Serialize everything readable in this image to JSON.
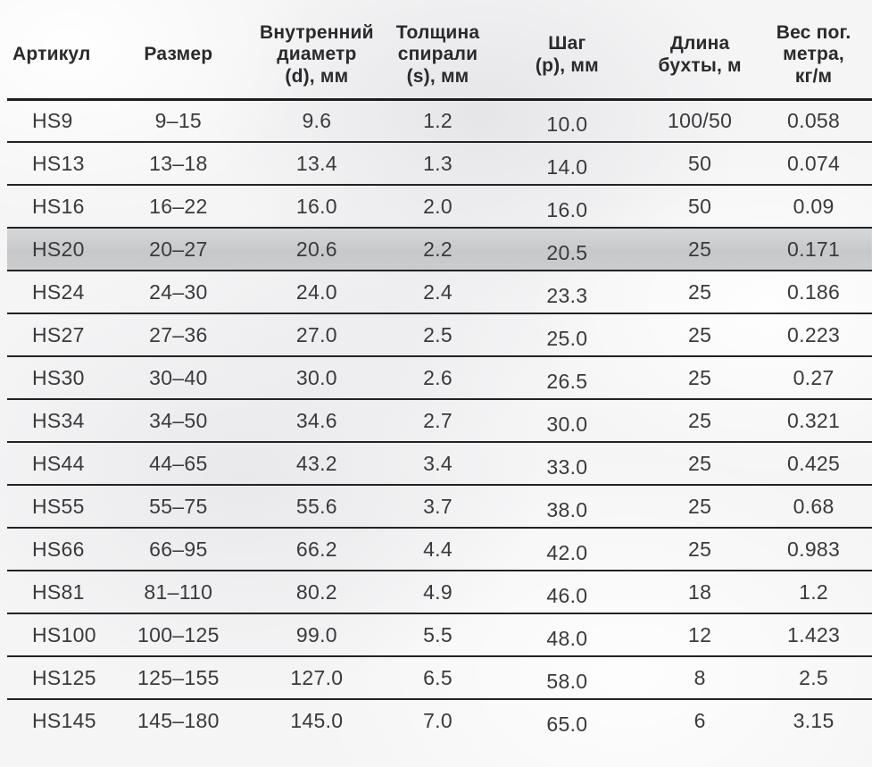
{
  "chart_data": {
    "type": "table",
    "title": "",
    "columns": [
      "Артикул",
      "Размер",
      "Внутренний диаметр (d), мм",
      "Толщина спирали (s), мм",
      "Шаг (p), мм",
      "Длина бухты, м",
      "Вес пог. метра, кг/м"
    ],
    "column_keys": [
      "article",
      "size",
      "inner-diameter",
      "spiral-thickness",
      "pitch",
      "coil-length",
      "weight-per-meter"
    ],
    "rows": [
      [
        "HS9",
        "9–15",
        "9.6",
        "1.2",
        "10.0",
        "100/50",
        "0.058"
      ],
      [
        "HS13",
        "13–18",
        "13.4",
        "1.3",
        "14.0",
        "50",
        "0.074"
      ],
      [
        "HS16",
        "16–22",
        "16.0",
        "2.0",
        "16.0",
        "50",
        "0.09"
      ],
      [
        "HS20",
        "20–27",
        "20.6",
        "2.2",
        "20.5",
        "25",
        "0.171"
      ],
      [
        "HS24",
        "24–30",
        "24.0",
        "2.4",
        "23.3",
        "25",
        "0.186"
      ],
      [
        "HS27",
        "27–36",
        "27.0",
        "2.5",
        "25.0",
        "25",
        "0.223"
      ],
      [
        "HS30",
        "30–40",
        "30.0",
        "2.6",
        "26.5",
        "25",
        "0.27"
      ],
      [
        "HS34",
        "34–50",
        "34.6",
        "2.7",
        "30.0",
        "25",
        "0.321"
      ],
      [
        "HS44",
        "44–65",
        "43.2",
        "3.4",
        "33.0",
        "25",
        "0.425"
      ],
      [
        "HS55",
        "55–75",
        "55.6",
        "3.7",
        "38.0",
        "25",
        "0.68"
      ],
      [
        "HS66",
        "66–95",
        "66.2",
        "4.4",
        "42.0",
        "25",
        "0.983"
      ],
      [
        "HS81",
        "81–110",
        "80.2",
        "4.9",
        "46.0",
        "18",
        "1.2"
      ],
      [
        "HS100",
        "100–125",
        "99.0",
        "5.5",
        "48.0",
        "12",
        "1.423"
      ],
      [
        "HS125",
        "125–155",
        "127.0",
        "6.5",
        "58.0",
        "8",
        "2.5"
      ],
      [
        "HS145",
        "145–180",
        "145.0",
        "7.0",
        "65.0",
        "6",
        "3.15"
      ]
    ],
    "highlighted_row": "HS20",
    "layout": {
      "grid": "horizontal-row-separators-only",
      "header_position": "top"
    }
  },
  "table": {
    "header_labels": [
      "Артикул",
      "Размер",
      "Внутренний\nдиаметр\n(d), мм",
      "Толщина\nспирали\n(s), мм",
      "Шаг\n(p), мм",
      "Длина\nбухты, м",
      "Вес пог.\nметра,\nкг/м"
    ]
  },
  "colors": {
    "background": "#f5f5f6",
    "row_separator": "#232323",
    "header_text": "#2a2a2c",
    "body_text": "#3a3a3c",
    "highlight_row_background": "#cbccce"
  }
}
